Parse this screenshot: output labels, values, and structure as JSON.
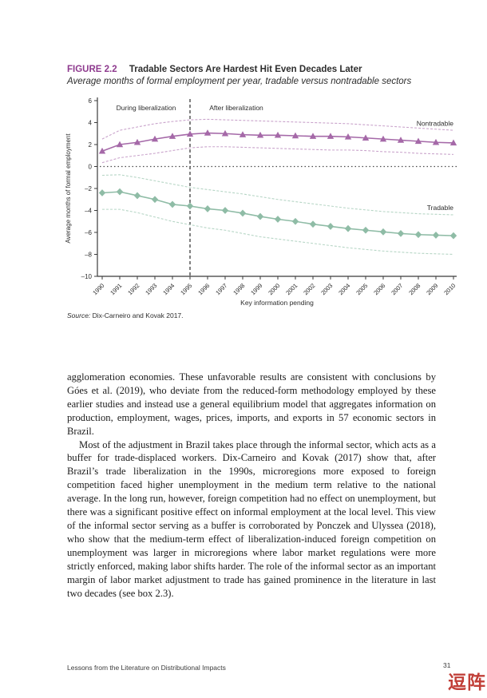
{
  "figure": {
    "label": "FIGURE 2.2",
    "title": "Tradable Sectors Are Hardest Hit Even Decades Later",
    "subtitle": "Average months of formal employment per year, tradable versus nontradable sectors",
    "accent_color": "#8E3A8E",
    "source_label": "Source:",
    "source_text": " Dix-Carneiro and Kovak 2017."
  },
  "chart_data": {
    "type": "line",
    "title": "Tradable Sectors Are Hardest Hit Even Decades Later",
    "xlabel": "Key information pending",
    "ylabel": "Average months of formal employment",
    "ylim": [
      -10,
      6
    ],
    "y_tick_values": [
      6,
      4,
      2,
      0,
      -2,
      -4,
      -6,
      -8,
      -10
    ],
    "y_tick_labels": [
      "6",
      "4",
      "2",
      "0",
      "–2",
      "–4",
      "–6",
      "–8",
      "–10"
    ],
    "x": [
      1990,
      1991,
      1992,
      1993,
      1994,
      1995,
      1996,
      1997,
      1998,
      1999,
      2000,
      2001,
      2002,
      2003,
      2004,
      2005,
      2006,
      2007,
      2008,
      2009,
      2010
    ],
    "zero_line": 0,
    "annotations": {
      "during": "During liberalization",
      "after": "After liberalization",
      "divider_x": 1995
    },
    "legend_position": "inline-right",
    "grid": false,
    "series": [
      {
        "name": "Nontradable",
        "color": "#A569A8",
        "ci_color": "#C9A3CB",
        "marker": "triangle",
        "label_y": 3.7,
        "values": [
          1.4,
          2.0,
          2.2,
          2.5,
          2.75,
          2.95,
          3.05,
          3.0,
          2.9,
          2.85,
          2.85,
          2.8,
          2.75,
          2.75,
          2.7,
          2.6,
          2.5,
          2.4,
          2.3,
          2.2,
          2.15
        ],
        "ci_upper": [
          2.5,
          3.3,
          3.6,
          3.9,
          4.1,
          4.25,
          4.3,
          4.25,
          4.2,
          4.15,
          4.1,
          4.05,
          4.0,
          3.95,
          3.9,
          3.8,
          3.7,
          3.6,
          3.5,
          3.4,
          3.3
        ],
        "ci_lower": [
          0.35,
          0.8,
          1.0,
          1.2,
          1.45,
          1.7,
          1.8,
          1.8,
          1.75,
          1.7,
          1.65,
          1.6,
          1.55,
          1.5,
          1.5,
          1.45,
          1.35,
          1.3,
          1.2,
          1.15,
          1.1
        ]
      },
      {
        "name": "Tradable",
        "color": "#8FBCA6",
        "ci_color": "#B7D6C6",
        "marker": "diamond",
        "label_y": -3.95,
        "values": [
          -2.4,
          -2.3,
          -2.65,
          -3.0,
          -3.45,
          -3.6,
          -3.85,
          -4.0,
          -4.25,
          -4.55,
          -4.8,
          -5.0,
          -5.25,
          -5.45,
          -5.65,
          -5.8,
          -5.95,
          -6.1,
          -6.2,
          -6.25,
          -6.3
        ],
        "ci_upper": [
          -0.8,
          -0.75,
          -1.0,
          -1.3,
          -1.6,
          -1.9,
          -2.1,
          -2.3,
          -2.5,
          -2.75,
          -3.0,
          -3.2,
          -3.4,
          -3.6,
          -3.8,
          -3.95,
          -4.1,
          -4.2,
          -4.3,
          -4.35,
          -4.4
        ],
        "ci_lower": [
          -3.9,
          -3.9,
          -4.2,
          -4.6,
          -5.0,
          -5.3,
          -5.6,
          -5.8,
          -6.1,
          -6.4,
          -6.6,
          -6.8,
          -7.0,
          -7.2,
          -7.4,
          -7.55,
          -7.7,
          -7.8,
          -7.9,
          -7.95,
          -8.0
        ]
      }
    ]
  },
  "body": {
    "paragraph1": "agglomeration economies. These unfavorable results are consistent with conclusions by Góes et al. (2019), who deviate from the reduced-form methodology employed by these earlier studies and instead use a general equilibrium model that aggregates information on production, employment, wages, prices, imports, and exports in 57 economic sectors in Brazil.",
    "paragraph2": "Most of the adjustment in Brazil takes place through the informal sector, which acts as a buffer for trade-displaced workers. Dix-Carneiro and Kovak (2017) show that, after Brazil’s trade liberalization in the 1990s, microregions more exposed to foreign competition faced higher unemployment in the medium term relative to the national average. In the long run, however, foreign competition had no effect on unemployment, but there was a significant positive effect on informal employment at the local level. This view of the informal sector serving as a buffer is corroborated by Ponczek and Ulyssea (2018), who show that the medium-term effect of liberalization-induced foreign competition on unemployment was larger in microregions where labor market regulations were more strictly enforced, making labor shifts harder. The role of the informal sector as an important margin of labor market adjustment to trade has gained prominence in the literature in last two decades (see box 2.3)."
  },
  "footer": {
    "running_title": "Lessons from the Literature on Distributional Impacts",
    "page_number": "31"
  },
  "watermark": {
    "text": "逗阵",
    "color": "#C13F38"
  }
}
